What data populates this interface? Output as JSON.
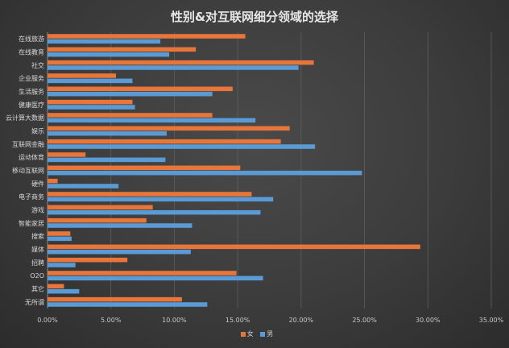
{
  "chart_data": {
    "type": "bar",
    "orientation": "horizontal",
    "title": "性别&对互联网细分领域的选择",
    "categories": [
      "在线旅游",
      "在线教育",
      "社交",
      "企业服务",
      "生活服务",
      "健康医疗",
      "云计算大数据",
      "娱乐",
      "互联网金融",
      "运动体育",
      "移动互联网",
      "硬件",
      "电子商务",
      "游戏",
      "智能家居",
      "搜索",
      "媒体",
      "招聘",
      "O2O",
      "其它",
      "无所谓"
    ],
    "series": [
      {
        "name": "女",
        "color": "#e8763a",
        "values": [
          15.6,
          11.7,
          21.0,
          5.4,
          14.6,
          6.7,
          13.0,
          19.1,
          18.4,
          3.0,
          15.2,
          0.8,
          16.1,
          8.3,
          7.8,
          1.8,
          29.4,
          6.3,
          14.9,
          1.3,
          10.6
        ]
      },
      {
        "name": "男",
        "color": "#5b9bd5",
        "values": [
          8.9,
          9.6,
          19.8,
          6.7,
          13.0,
          6.9,
          16.4,
          9.4,
          21.1,
          9.3,
          24.8,
          5.6,
          17.8,
          16.8,
          11.4,
          1.9,
          11.3,
          2.2,
          17.0,
          2.5,
          12.6
        ]
      }
    ],
    "xlim": [
      0,
      35
    ],
    "xticks": [
      "0.00%",
      "5.00%",
      "10.00%",
      "15.00%",
      "20.00%",
      "25.00%",
      "30.00%",
      "35.00%"
    ],
    "grid": "vertical",
    "legend_position": "bottom"
  }
}
